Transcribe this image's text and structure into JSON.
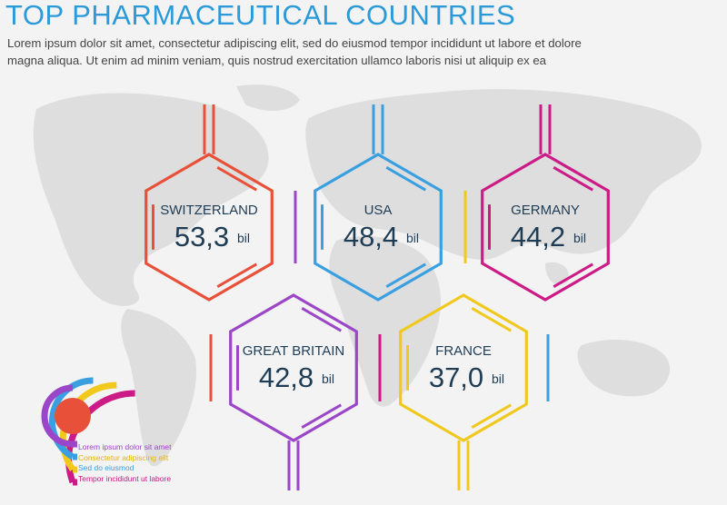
{
  "header": {
    "title": "TOP PHARMACEUTICAL COUNTRIES",
    "subtitle_line1": "Lorem ipsum dolor sit amet, consectetur adipiscing elit, sed do eiusmod tempor incididunt ut labore et dolore",
    "subtitle_line2": "magna aliqua. Ut enim ad minim veniam, quis nostrud exercitation ullamco laboris nisi ut aliquip ex ea"
  },
  "countries": [
    {
      "name": "SWITZERLAND",
      "value": "53,3",
      "unit": "bil",
      "color": "#e8503a"
    },
    {
      "name": "USA",
      "value": "48,4",
      "unit": "bil",
      "color": "#3a9fe0"
    },
    {
      "name": "GERMANY",
      "value": "44,2",
      "unit": "bil",
      "color": "#cc1a86"
    },
    {
      "name": "GREAT BRITAIN",
      "value": "42,8",
      "unit": "bil",
      "color": "#9b45c8"
    },
    {
      "name": "FRANCE",
      "value": "37,0",
      "unit": "bil",
      "color": "#f1c81c"
    }
  ],
  "legend": [
    {
      "label": "Lorem ipsum dolor sit amet",
      "color": "#9b45c8"
    },
    {
      "label": "Consectetur adipiscing elit",
      "color": "#f1c81c"
    },
    {
      "label": "Sed do eiusmod",
      "color": "#3a9fe0"
    },
    {
      "label": "Tempor incididunt ut labore",
      "color": "#cc1a86"
    }
  ],
  "colors": {
    "title": "#2b9ad8",
    "text": "#1f3c55",
    "map": "#dcdcdc",
    "center_dot": "#e8503a"
  }
}
